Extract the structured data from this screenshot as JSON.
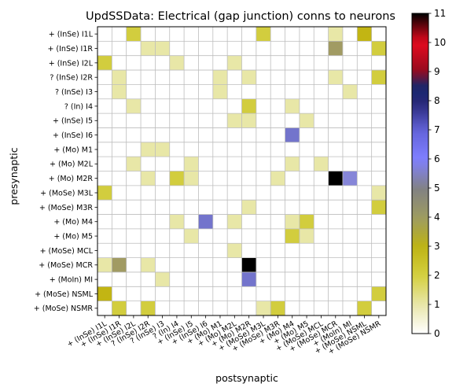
{
  "chart_data": {
    "type": "heatmap",
    "title": "UpdSSData: Electrical (gap junction) conns to neurons",
    "xlabel": "postsynaptic",
    "ylabel": "presynaptic",
    "labels": [
      "+ (InSe) I1L",
      "+ (InSe) I1R",
      "+ (InSe) I2L",
      "? (InSe) I2R",
      "? (InSe) I3",
      "? (In) I4",
      "+ (InSe) I5",
      "+ (InSe) I6",
      "+ (Mo) M1",
      "+ (Mo) M2L",
      "+ (Mo) M2R",
      "+ (MoSe) M3L",
      "+ (MoSe) M3R",
      "+ (Mo) M4",
      "+ (Mo) M5",
      "+ (MoSe) MCL",
      "+ (MoSe) MCR",
      "+ (MoIn) MI",
      "+ (MoSe) NSML",
      "+ (MoSe) NSMR"
    ],
    "colorbar": {
      "min": 0,
      "max": 11,
      "ticks": [
        0,
        1,
        2,
        3,
        4,
        5,
        6,
        7,
        8,
        9,
        10,
        11
      ],
      "colormap": "gist_stern_r"
    },
    "cells": [
      {
        "pre": 0,
        "post": 2,
        "value": 2
      },
      {
        "pre": 0,
        "post": 11,
        "value": 2
      },
      {
        "pre": 0,
        "post": 16,
        "value": 1
      },
      {
        "pre": 0,
        "post": 18,
        "value": 3
      },
      {
        "pre": 1,
        "post": 3,
        "value": 1
      },
      {
        "pre": 1,
        "post": 4,
        "value": 1
      },
      {
        "pre": 1,
        "post": 16,
        "value": 4
      },
      {
        "pre": 1,
        "post": 19,
        "value": 2
      },
      {
        "pre": 2,
        "post": 0,
        "value": 2
      },
      {
        "pre": 2,
        "post": 5,
        "value": 1
      },
      {
        "pre": 2,
        "post": 9,
        "value": 1
      },
      {
        "pre": 3,
        "post": 1,
        "value": 1
      },
      {
        "pre": 3,
        "post": 8,
        "value": 1
      },
      {
        "pre": 3,
        "post": 10,
        "value": 1
      },
      {
        "pre": 3,
        "post": 16,
        "value": 1
      },
      {
        "pre": 3,
        "post": 19,
        "value": 2
      },
      {
        "pre": 4,
        "post": 1,
        "value": 1
      },
      {
        "pre": 4,
        "post": 8,
        "value": 1
      },
      {
        "pre": 4,
        "post": 17,
        "value": 1
      },
      {
        "pre": 5,
        "post": 2,
        "value": 1
      },
      {
        "pre": 5,
        "post": 10,
        "value": 2
      },
      {
        "pre": 5,
        "post": 13,
        "value": 1
      },
      {
        "pre": 6,
        "post": 9,
        "value": 1
      },
      {
        "pre": 6,
        "post": 10,
        "value": 1
      },
      {
        "pre": 6,
        "post": 14,
        "value": 1
      },
      {
        "pre": 7,
        "post": 13,
        "value": 6
      },
      {
        "pre": 8,
        "post": 3,
        "value": 1
      },
      {
        "pre": 8,
        "post": 4,
        "value": 1
      },
      {
        "pre": 9,
        "post": 2,
        "value": 1
      },
      {
        "pre": 9,
        "post": 6,
        "value": 1
      },
      {
        "pre": 9,
        "post": 13,
        "value": 1
      },
      {
        "pre": 9,
        "post": 15,
        "value": 1
      },
      {
        "pre": 10,
        "post": 3,
        "value": 1
      },
      {
        "pre": 10,
        "post": 5,
        "value": 2
      },
      {
        "pre": 10,
        "post": 6,
        "value": 1
      },
      {
        "pre": 10,
        "post": 12,
        "value": 1
      },
      {
        "pre": 10,
        "post": 16,
        "value": 11
      },
      {
        "pre": 10,
        "post": 17,
        "value": 5
      },
      {
        "pre": 11,
        "post": 0,
        "value": 2
      },
      {
        "pre": 11,
        "post": 19,
        "value": 1
      },
      {
        "pre": 12,
        "post": 10,
        "value": 1
      },
      {
        "pre": 12,
        "post": 19,
        "value": 2
      },
      {
        "pre": 13,
        "post": 5,
        "value": 1
      },
      {
        "pre": 13,
        "post": 7,
        "value": 6
      },
      {
        "pre": 13,
        "post": 9,
        "value": 1
      },
      {
        "pre": 13,
        "post": 13,
        "value": 1
      },
      {
        "pre": 13,
        "post": 14,
        "value": 2
      },
      {
        "pre": 14,
        "post": 6,
        "value": 1
      },
      {
        "pre": 14,
        "post": 13,
        "value": 2
      },
      {
        "pre": 14,
        "post": 14,
        "value": 1
      },
      {
        "pre": 15,
        "post": 9,
        "value": 1
      },
      {
        "pre": 16,
        "post": 0,
        "value": 1
      },
      {
        "pre": 16,
        "post": 1,
        "value": 4
      },
      {
        "pre": 16,
        "post": 3,
        "value": 1
      },
      {
        "pre": 16,
        "post": 10,
        "value": 11
      },
      {
        "pre": 17,
        "post": 4,
        "value": 1
      },
      {
        "pre": 17,
        "post": 10,
        "value": 6
      },
      {
        "pre": 18,
        "post": 0,
        "value": 3
      },
      {
        "pre": 18,
        "post": 19,
        "value": 2
      },
      {
        "pre": 19,
        "post": 1,
        "value": 2
      },
      {
        "pre": 19,
        "post": 3,
        "value": 2
      },
      {
        "pre": 19,
        "post": 11,
        "value": 1
      },
      {
        "pre": 19,
        "post": 12,
        "value": 2
      },
      {
        "pre": 19,
        "post": 18,
        "value": 2
      }
    ]
  }
}
